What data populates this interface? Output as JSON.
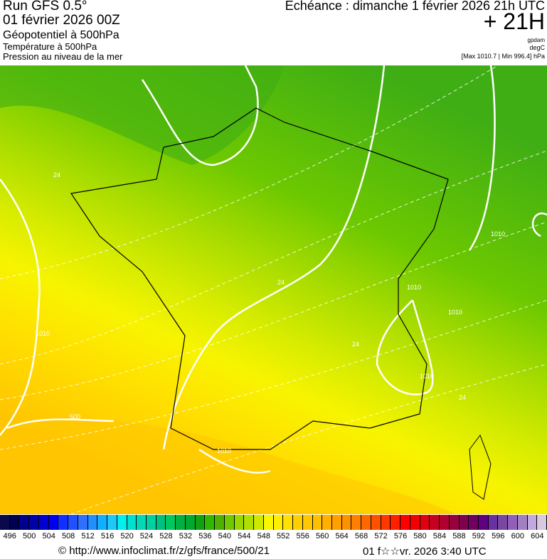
{
  "header": {
    "run": "Run GFS 0.5°",
    "run_date": "01 février 2026 00Z",
    "field1": "Géopotentiel à 500hPa",
    "field2": "Température à 500hPa",
    "field3": "Pression au niveau de la mer",
    "valid_time": "Echéance : dimanche 1 février 2026 21h UTC",
    "lead": "+ 21H",
    "unit1": "gpdam",
    "unit2": "degC",
    "pressure_range": "[Max 1010.7 | Min 996.4] hPa"
  },
  "map": {
    "contour_labels": [
      "24",
      "24",
      "24",
      "1010",
      "1010",
      "1010",
      "1010",
      "1010",
      "1010",
      "24",
      "500"
    ],
    "colors": {
      "green_dark": "#3fae14",
      "green": "#6cc800",
      "lime": "#a8dc00",
      "yellow": "#f8f400",
      "gold": "#ffd400",
      "orange": "#ffc000"
    }
  },
  "colorbar": {
    "labels": [
      "496",
      "500",
      "504",
      "508",
      "512",
      "516",
      "520",
      "524",
      "528",
      "532",
      "536",
      "540",
      "544",
      "548",
      "552",
      "556",
      "560",
      "564",
      "568",
      "572",
      "576",
      "580",
      "584",
      "588",
      "592",
      "596",
      "600",
      "604"
    ],
    "colors": [
      "#0a0a4a",
      "#000050",
      "#000090",
      "#0000a8",
      "#0000d0",
      "#0000f0",
      "#1030ff",
      "#2050ff",
      "#3070ff",
      "#2090ff",
      "#10b0ff",
      "#20c8f8",
      "#00f0f0",
      "#00e0d0",
      "#00d8b8",
      "#00d0a0",
      "#00c080",
      "#00c860",
      "#00b040",
      "#00a830",
      "#10a010",
      "#30b800",
      "#50b000",
      "#70c800",
      "#98d800",
      "#b0e000",
      "#d0e800",
      "#f8f800",
      "#ffee00",
      "#ffe000",
      "#ffd000",
      "#ffc800",
      "#ffc000",
      "#ffb000",
      "#ffa000",
      "#ff9000",
      "#ff8000",
      "#ff6800",
      "#ff5000",
      "#ff3800",
      "#ff2000",
      "#ff0000",
      "#f00000",
      "#e00010",
      "#c80020",
      "#b00030",
      "#980040",
      "#800050",
      "#700060",
      "#600080",
      "#6830a0",
      "#7848a0",
      "#9060b8",
      "#a080c0",
      "#c0a8e0",
      "#d8c8e0"
    ]
  },
  "footer": {
    "url": "© http://www.infoclimat.fr/z/gfs/france/500/21",
    "timestamp": "01 f☆☆vr. 2026  3:40 UTC"
  }
}
